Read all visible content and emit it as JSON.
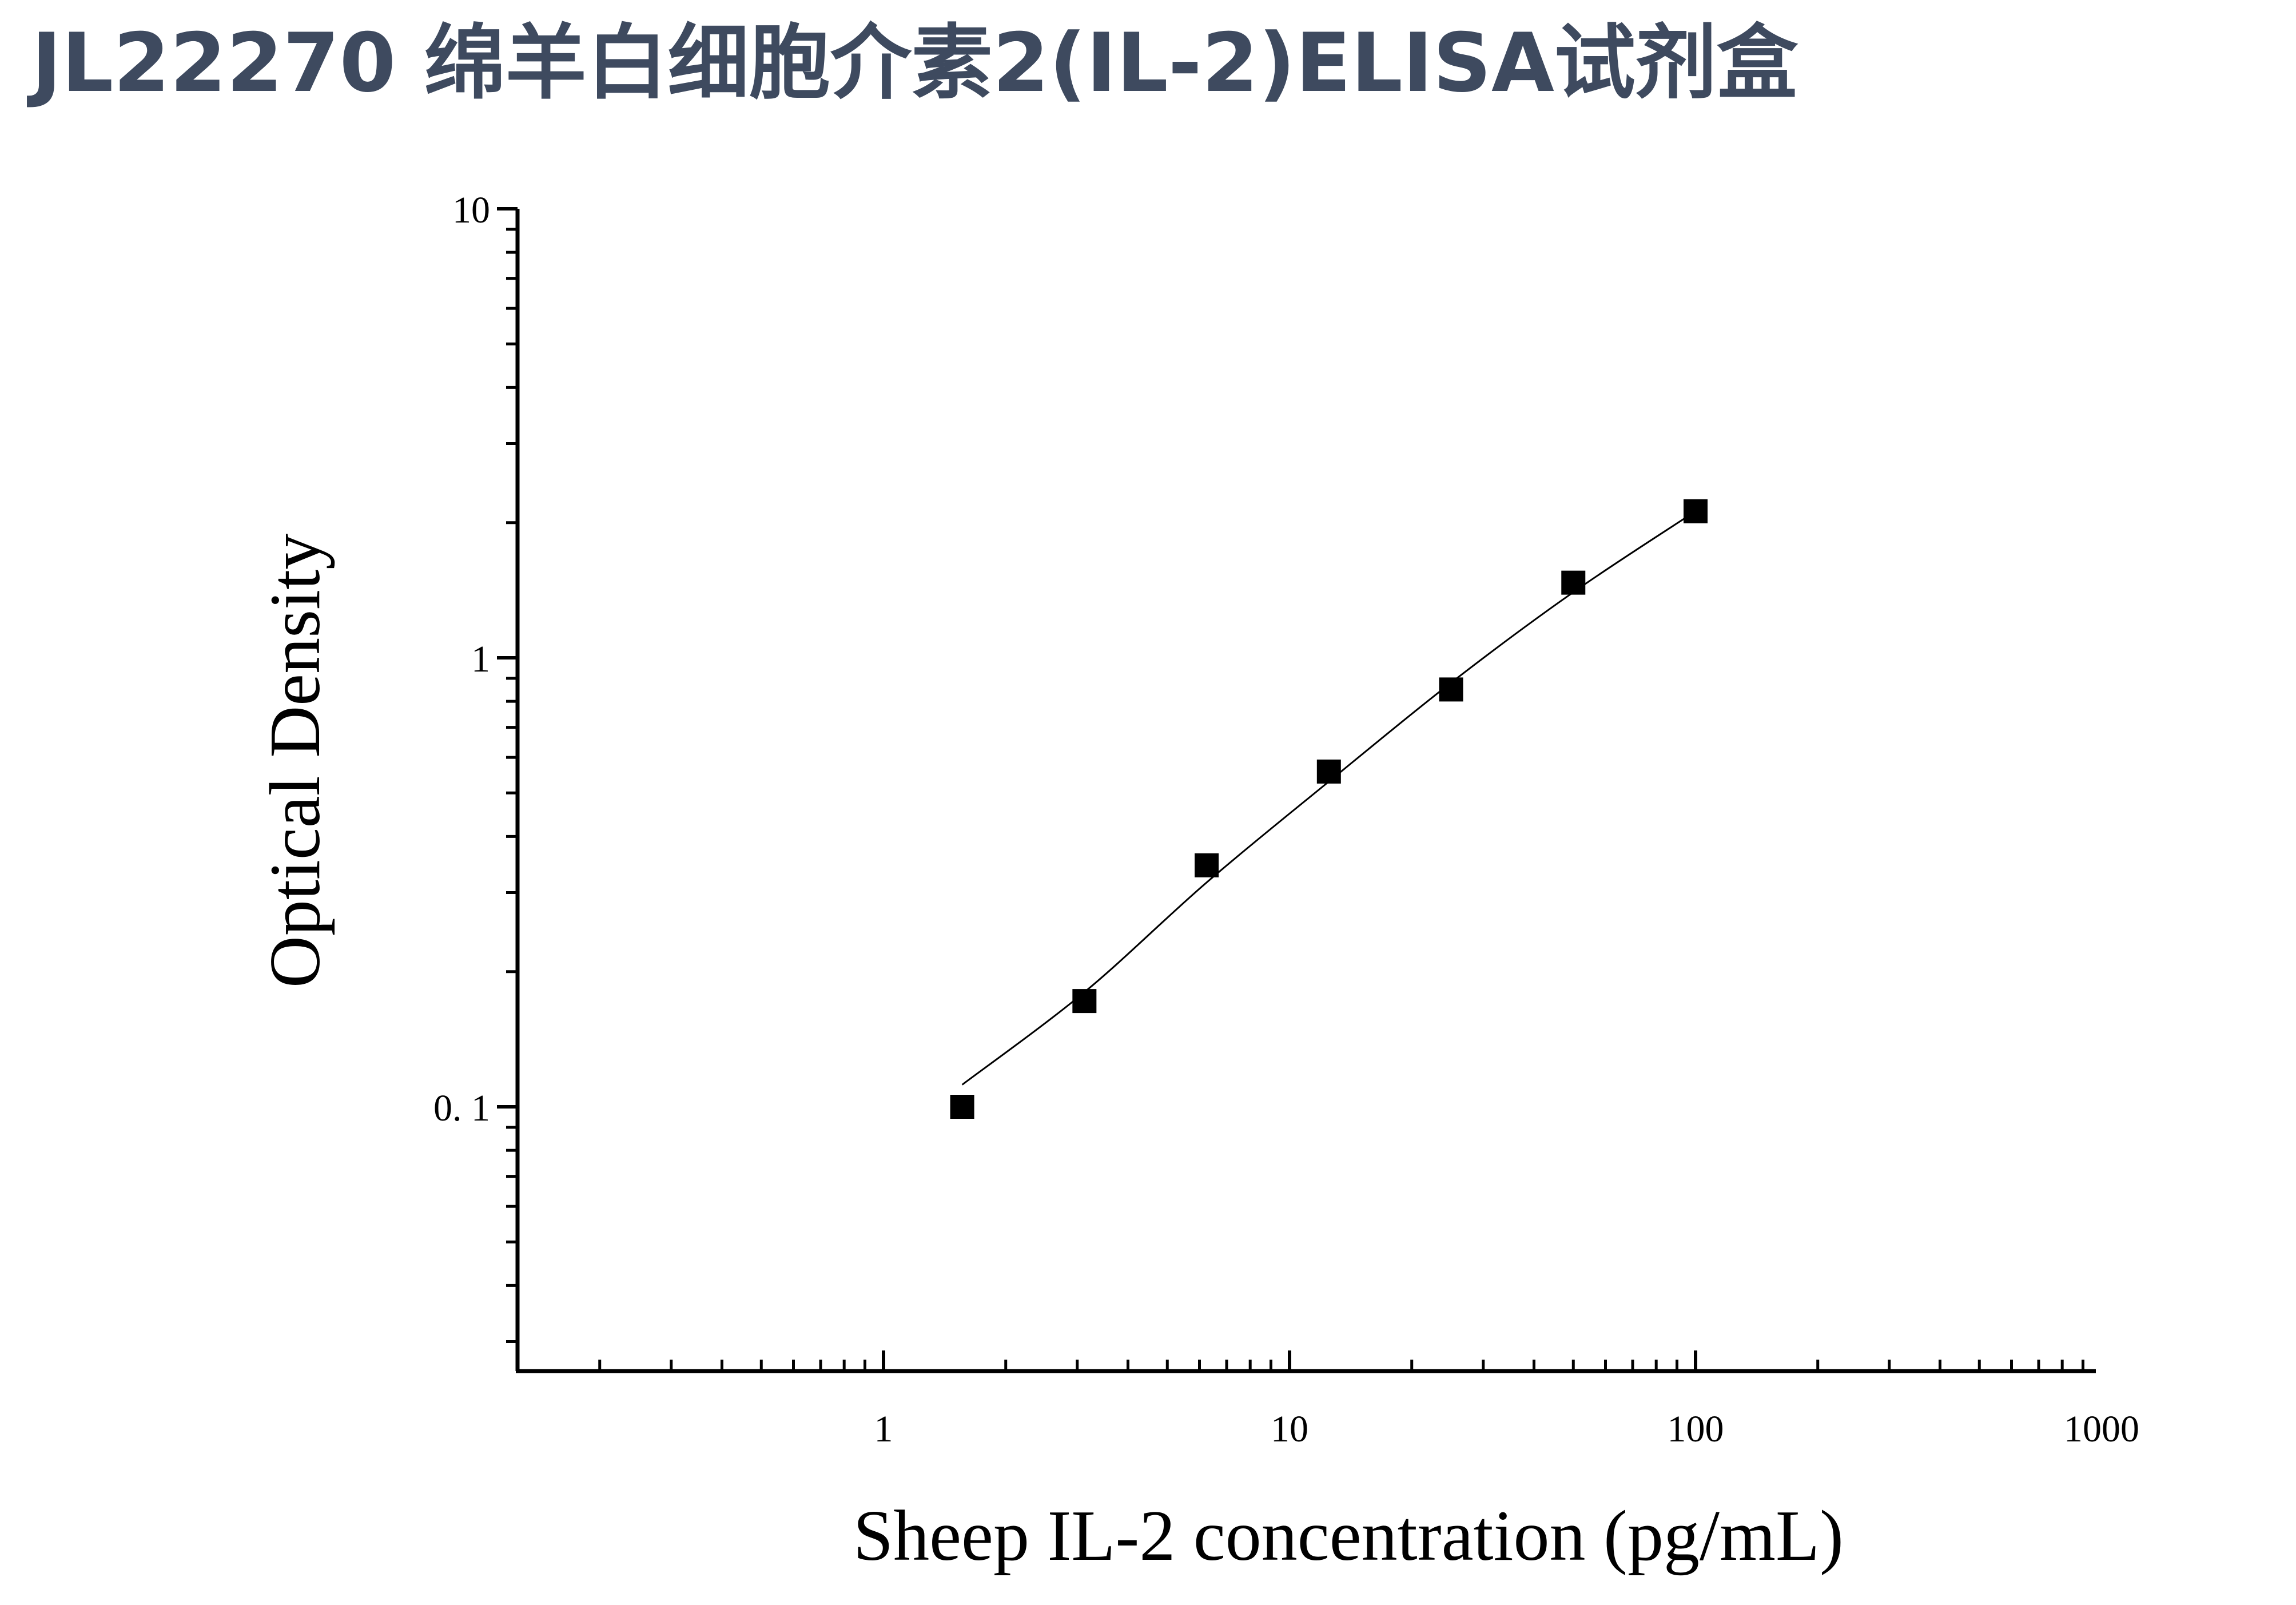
{
  "header": {
    "title": "JL22270 绵羊白细胞介素2(IL-2)ELISA试剂盒"
  },
  "chart_data": {
    "type": "scatter",
    "title": "",
    "xlabel": "Sheep IL-2 concentration (pg/mL)",
    "ylabel": "Optical Density",
    "xscale": "log",
    "yscale": "log",
    "xlim": [
      0.1,
      1000
    ],
    "ylim": [
      0.025,
      10
    ],
    "x_ticks": [
      {
        "value": 1,
        "label": "1"
      },
      {
        "value": 10,
        "label": "10"
      },
      {
        "value": 100,
        "label": "100"
      },
      {
        "value": 1000,
        "label": "1000"
      }
    ],
    "y_ticks": [
      {
        "value": 0.1,
        "label": "0. 1"
      },
      {
        "value": 1,
        "label": "1"
      },
      {
        "value": 10,
        "label": "10"
      }
    ],
    "grid": false,
    "legend": "none",
    "series": [
      {
        "marker": "square",
        "color": "#000000",
        "x": [
          1.5625,
          3.125,
          6.25,
          12.5,
          25,
          50,
          100
        ],
        "y": [
          0.1,
          0.172,
          0.345,
          0.558,
          0.85,
          1.47,
          2.12
        ]
      }
    ],
    "fit_line": {
      "color": "#000000",
      "x": [
        1.5625,
        3.125,
        6.25,
        12.5,
        25,
        50,
        100
      ],
      "y": [
        0.112,
        0.18,
        0.316,
        0.53,
        0.88,
        1.4,
        2.12
      ]
    }
  }
}
